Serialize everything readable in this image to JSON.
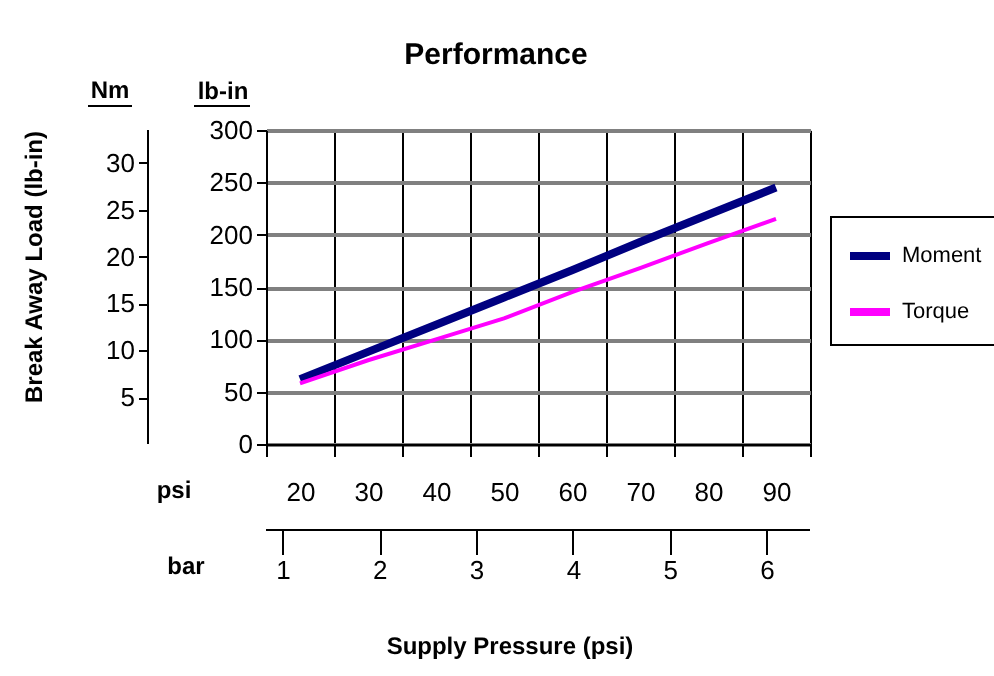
{
  "chart_data": {
    "type": "line",
    "title": "Performance",
    "xlabel": "Supply Pressure (psi)",
    "ylabel": "lb-in",
    "y2label": "Nm",
    "x2label": "bar",
    "annotations": [
      "Break Away Load (lb-in)",
      "psi"
    ],
    "categories": [
      "20",
      "30",
      "40",
      "50",
      "60",
      "70",
      "80",
      "90"
    ],
    "series": [
      {
        "name": "Moment",
        "color": "#000080",
        "values": [
          62,
          88,
          114,
          140,
          166,
          193,
          219,
          245
        ]
      },
      {
        "name": "Torque",
        "color": "#ff00ff",
        "values": [
          58,
          80,
          100,
          120,
          145,
          168,
          192,
          215
        ]
      }
    ],
    "ylim": [
      0,
      300
    ],
    "yticks": [
      0,
      50,
      100,
      150,
      200,
      250,
      300
    ],
    "y2lim": [
      0,
      33.5
    ],
    "y2ticks": [
      5,
      10,
      15,
      20,
      25,
      30
    ],
    "x2lim": [
      0.83,
      6.45
    ],
    "x2ticks": [
      1,
      2,
      3,
      4,
      5,
      6
    ],
    "grid": true,
    "legend": "right",
    "marker": "none",
    "line_style": "solid"
  }
}
